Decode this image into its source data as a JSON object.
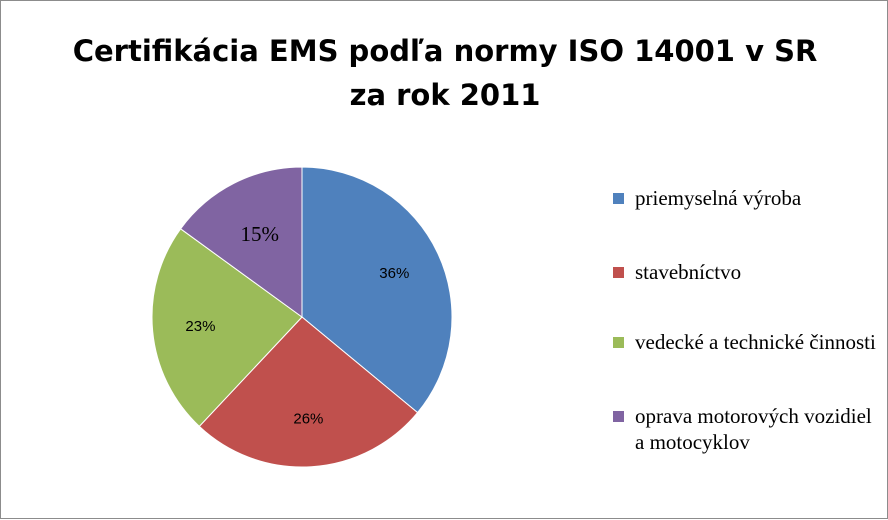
{
  "chart_data": {
    "type": "pie",
    "title": "Certifikácia EMS podľa normy ISO 14001 v SR za rok 2011",
    "slices": [
      {
        "label": "priemyselná výroba",
        "value": 36,
        "data_label": "36%",
        "color": "#4f81bd"
      },
      {
        "label": "stavebníctvo",
        "value": 26,
        "data_label": "26%",
        "color": "#c0504d"
      },
      {
        "label": "vedecké a technické činnosti",
        "value": 23,
        "data_label": "23%",
        "color": "#9bbb59"
      },
      {
        "label": "oprava motorových vozidiel a motocyklov",
        "value": 15,
        "data_label": "15%",
        "color": "#8064a2"
      }
    ],
    "legend_position": "right",
    "start_angle": "top, clockwise"
  }
}
